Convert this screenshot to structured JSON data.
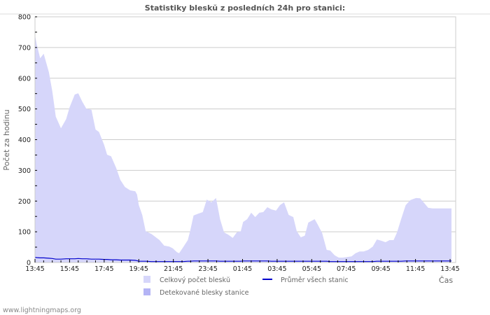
{
  "title": "Statistiky bleskŭ z posledních 24h pro stanici:",
  "footer": "www.lightningmaps.org",
  "colors": {
    "total_fill": "#d6d6fa",
    "detected_fill": "#b4b4f5",
    "average_line": "#0000cc",
    "grid": "#cccccc",
    "axis_text": "#222222",
    "title_text": "#555555"
  },
  "legend": {
    "items": [
      {
        "label": "Celkový počet bleskŭ",
        "type": "area",
        "color": "#d6d6fa"
      },
      {
        "label": "Průměr všech stanic",
        "type": "line",
        "color": "#0000cc"
      },
      {
        "label": "Detekované blesky stanice",
        "type": "area",
        "color": "#b4b4f5"
      }
    ]
  },
  "chart_data": {
    "type": "area",
    "title": "Statistiky bleskŭ z posledních 24h pro stanici:",
    "xlabel": "Čas",
    "ylabel": "Počet za hodinu",
    "ylim": [
      0,
      800
    ],
    "yticks": [
      0,
      100,
      200,
      300,
      400,
      500,
      600,
      700,
      800
    ],
    "xticks": [
      "13:45",
      "15:45",
      "17:45",
      "19:45",
      "21:45",
      "23:45",
      "01:45",
      "03:45",
      "05:45",
      "07:45",
      "09:45",
      "11:45",
      "13:45"
    ],
    "grid": true,
    "legend_position": "bottom",
    "x_minutes_from_start": [
      0,
      6,
      18,
      30,
      48,
      60,
      72,
      90,
      108,
      120,
      138,
      150,
      164,
      178,
      196,
      210,
      222,
      240,
      250,
      264,
      282,
      296,
      312,
      330,
      348,
      354,
      360,
      372,
      384,
      404,
      422,
      432,
      448,
      466,
      478,
      492,
      500,
      514,
      530,
      538,
      550,
      566,
      582,
      596,
      612,
      628,
      642,
      656,
      670,
      686,
      700,
      714,
      722,
      736,
      750,
      764,
      778,
      792,
      806,
      820,
      836,
      850,
      864,
      880,
      896,
      908,
      922,
      936,
      948,
      970,
      980,
      996,
      1012,
      1024,
      1040,
      1054,
      1068,
      1084,
      1098,
      1112,
      1126,
      1140,
      1156,
      1172,
      1186,
      1200,
      1216,
      1230,
      1244,
      1256,
      1270,
      1286,
      1302,
      1312,
      1322,
      1336,
      1348,
      1364,
      1380,
      1394,
      1404,
      1418,
      1428,
      1440,
      1460
    ],
    "series": [
      {
        "name": "Celkový počet bleskŭ",
        "values": [
          740,
          710,
          665,
          680,
          620,
          558,
          475,
          437,
          467,
          505,
          547,
          551,
          524,
          501,
          497,
          433,
          425,
          383,
          351,
          346,
          307,
          269,
          246,
          235,
          232,
          221,
          187,
          155,
          102,
          93,
          80,
          73,
          55,
          52,
          46,
          34,
          30,
          50,
          73,
          102,
          153,
          159,
          164,
          205,
          196,
          210,
          141,
          98,
          91,
          80,
          98,
          102,
          132,
          141,
          162,
          148,
          162,
          164,
          180,
          173,
          169,
          187,
          196,
          155,
          148,
          102,
          82,
          87,
          130,
          141,
          125,
          96,
          41,
          39,
          23,
          16,
          16,
          18,
          20,
          30,
          36,
          36,
          41,
          52,
          75,
          71,
          66,
          73,
          73,
          98,
          141,
          187,
          203,
          207,
          210,
          209,
          196,
          178,
          176,
          176,
          176,
          176,
          176,
          176,
          176
        ]
      },
      {
        "name": "Detekované blesky stanice",
        "values": []
      },
      {
        "name": "Průměr všech stanic",
        "values": [
          17,
          16,
          15,
          15,
          14,
          13,
          11,
          11,
          12,
          12,
          12,
          13,
          12,
          12,
          11,
          11,
          11,
          10,
          10,
          9,
          9,
          8,
          8,
          8,
          7,
          6,
          4,
          4,
          4,
          3,
          3,
          3,
          3,
          3,
          3,
          3,
          3,
          3,
          4,
          4,
          5,
          5,
          5,
          5,
          5,
          5,
          4,
          4,
          4,
          4,
          4,
          4,
          5,
          5,
          5,
          5,
          5,
          5,
          5,
          4,
          4,
          4,
          4,
          4,
          4,
          4,
          4,
          4,
          4,
          4,
          4,
          4,
          4,
          3,
          3,
          3,
          3,
          3,
          3,
          3,
          3,
          3,
          3,
          3,
          4,
          4,
          4,
          4,
          4,
          4,
          4,
          5,
          5,
          5,
          5,
          5,
          5,
          5,
          5,
          5,
          5,
          5,
          5,
          5,
          5
        ]
      }
    ]
  }
}
